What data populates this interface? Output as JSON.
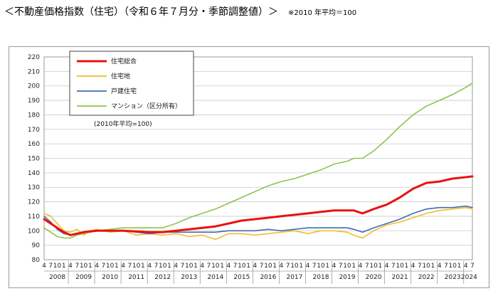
{
  "title": "＜不動産価格指数（住宅）（令和６年７月分・季節調整値）＞",
  "title_note": "※2010 年平均＝100",
  "chart_data": {
    "type": "line",
    "base_note": "(2010年平均=100)",
    "ylim": [
      80,
      220
    ],
    "yticks": [
      80,
      90,
      100,
      110,
      120,
      130,
      140,
      150,
      160,
      170,
      180,
      190,
      200,
      210,
      220
    ],
    "grid": true,
    "legend_position": "top-left",
    "x_start": "2008-04",
    "x_end": "2024-07",
    "month_tick_labels": [
      "4",
      "7",
      "10",
      "1"
    ],
    "years": [
      "2008",
      "2009",
      "2010",
      "2011",
      "2012",
      "2013",
      "2014",
      "2015",
      "2016",
      "2017",
      "2018",
      "2019",
      "2020",
      "2021",
      "2022",
      "2023",
      "2024"
    ],
    "series": [
      {
        "name": "住宅総合",
        "color": "#e8120f",
        "points": [
          [
            "2008-04",
            108
          ],
          [
            "2008-07",
            105
          ],
          [
            "2008-10",
            102
          ],
          [
            "2009-01",
            99
          ],
          [
            "2009-04",
            97
          ],
          [
            "2009-07",
            98
          ],
          [
            "2009-10",
            99
          ],
          [
            "2010-01",
            99.5
          ],
          [
            "2010-04",
            100
          ],
          [
            "2010-10",
            100
          ],
          [
            "2011-04",
            100
          ],
          [
            "2011-10",
            99.5
          ],
          [
            "2012-04",
            99
          ],
          [
            "2012-10",
            99
          ],
          [
            "2013-04",
            100
          ],
          [
            "2013-10",
            101
          ],
          [
            "2014-04",
            102
          ],
          [
            "2014-10",
            103
          ],
          [
            "2015-04",
            105
          ],
          [
            "2015-10",
            107
          ],
          [
            "2016-04",
            108
          ],
          [
            "2016-10",
            109
          ],
          [
            "2017-04",
            110
          ],
          [
            "2017-10",
            111
          ],
          [
            "2018-04",
            112
          ],
          [
            "2018-10",
            113
          ],
          [
            "2019-04",
            114
          ],
          [
            "2019-10",
            114
          ],
          [
            "2020-01",
            114
          ],
          [
            "2020-05",
            112
          ],
          [
            "2020-10",
            115
          ],
          [
            "2021-04",
            118
          ],
          [
            "2021-10",
            123
          ],
          [
            "2022-04",
            129
          ],
          [
            "2022-10",
            133
          ],
          [
            "2023-04",
            134
          ],
          [
            "2023-10",
            136
          ],
          [
            "2024-04",
            137
          ],
          [
            "2024-07",
            137.5
          ]
        ]
      },
      {
        "name": "住宅地",
        "color": "#f2bc2b",
        "points": [
          [
            "2008-04",
            112
          ],
          [
            "2008-07",
            110
          ],
          [
            "2008-10",
            105
          ],
          [
            "2009-01",
            100
          ],
          [
            "2009-04",
            99
          ],
          [
            "2009-07",
            101
          ],
          [
            "2009-10",
            97
          ],
          [
            "2010-01",
            100
          ],
          [
            "2010-04",
            101
          ],
          [
            "2010-10",
            99
          ],
          [
            "2011-04",
            100
          ],
          [
            "2011-10",
            97
          ],
          [
            "2012-04",
            98
          ],
          [
            "2012-10",
            97
          ],
          [
            "2013-04",
            98
          ],
          [
            "2013-10",
            96
          ],
          [
            "2014-04",
            97
          ],
          [
            "2014-10",
            94
          ],
          [
            "2015-04",
            98
          ],
          [
            "2015-10",
            98
          ],
          [
            "2016-04",
            97
          ],
          [
            "2016-10",
            98
          ],
          [
            "2017-04",
            99
          ],
          [
            "2017-10",
            100
          ],
          [
            "2018-04",
            98
          ],
          [
            "2018-10",
            100
          ],
          [
            "2019-04",
            100
          ],
          [
            "2019-10",
            99
          ],
          [
            "2020-01",
            97
          ],
          [
            "2020-05",
            95
          ],
          [
            "2020-10",
            100
          ],
          [
            "2021-04",
            104
          ],
          [
            "2021-10",
            106
          ],
          [
            "2022-04",
            109
          ],
          [
            "2022-10",
            112
          ],
          [
            "2023-04",
            114
          ],
          [
            "2023-10",
            115
          ],
          [
            "2024-04",
            116
          ],
          [
            "2024-07",
            115
          ]
        ]
      },
      {
        "name": "戸建住宅",
        "color": "#3f6db0",
        "points": [
          [
            "2008-04",
            110
          ],
          [
            "2008-07",
            106
          ],
          [
            "2008-10",
            101
          ],
          [
            "2009-01",
            98
          ],
          [
            "2009-04",
            97
          ],
          [
            "2009-07",
            98
          ],
          [
            "2009-10",
            99
          ],
          [
            "2010-01",
            100
          ],
          [
            "2010-04",
            100
          ],
          [
            "2010-10",
            100
          ],
          [
            "2011-04",
            100
          ],
          [
            "2011-10",
            99
          ],
          [
            "2012-04",
            98
          ],
          [
            "2012-10",
            99
          ],
          [
            "2013-04",
            99
          ],
          [
            "2013-10",
            99
          ],
          [
            "2014-04",
            99
          ],
          [
            "2014-10",
            99
          ],
          [
            "2015-04",
            100
          ],
          [
            "2015-10",
            100
          ],
          [
            "2016-04",
            100
          ],
          [
            "2016-10",
            101
          ],
          [
            "2017-04",
            100
          ],
          [
            "2017-10",
            101
          ],
          [
            "2018-04",
            102
          ],
          [
            "2018-10",
            102
          ],
          [
            "2019-04",
            102
          ],
          [
            "2019-10",
            102
          ],
          [
            "2020-01",
            101
          ],
          [
            "2020-05",
            99
          ],
          [
            "2020-10",
            102
          ],
          [
            "2021-04",
            105
          ],
          [
            "2021-10",
            108
          ],
          [
            "2022-04",
            112
          ],
          [
            "2022-10",
            115
          ],
          [
            "2023-04",
            116
          ],
          [
            "2023-10",
            116
          ],
          [
            "2024-04",
            117
          ],
          [
            "2024-07",
            116
          ]
        ]
      },
      {
        "name": "マンション（区分所有）",
        "color": "#8cc44c",
        "points": [
          [
            "2008-04",
            102
          ],
          [
            "2008-07",
            99
          ],
          [
            "2008-10",
            96
          ],
          [
            "2009-01",
            95
          ],
          [
            "2009-04",
            95
          ],
          [
            "2009-07",
            97
          ],
          [
            "2009-10",
            98
          ],
          [
            "2010-01",
            99
          ],
          [
            "2010-04",
            100
          ],
          [
            "2010-10",
            101
          ],
          [
            "2011-04",
            102
          ],
          [
            "2011-10",
            102
          ],
          [
            "2012-04",
            102
          ],
          [
            "2012-10",
            102
          ],
          [
            "2013-04",
            105
          ],
          [
            "2013-10",
            109
          ],
          [
            "2014-04",
            112
          ],
          [
            "2014-10",
            115
          ],
          [
            "2015-04",
            119
          ],
          [
            "2015-10",
            123
          ],
          [
            "2016-04",
            127
          ],
          [
            "2016-10",
            131
          ],
          [
            "2017-04",
            134
          ],
          [
            "2017-10",
            136
          ],
          [
            "2018-04",
            139
          ],
          [
            "2018-10",
            142
          ],
          [
            "2019-04",
            146
          ],
          [
            "2019-10",
            148
          ],
          [
            "2020-01",
            150
          ],
          [
            "2020-05",
            150
          ],
          [
            "2020-10",
            155
          ],
          [
            "2021-04",
            163
          ],
          [
            "2021-10",
            172
          ],
          [
            "2022-04",
            180
          ],
          [
            "2022-10",
            186
          ],
          [
            "2023-04",
            190
          ],
          [
            "2023-10",
            194
          ],
          [
            "2024-04",
            199
          ],
          [
            "2024-07",
            202
          ]
        ]
      }
    ]
  }
}
